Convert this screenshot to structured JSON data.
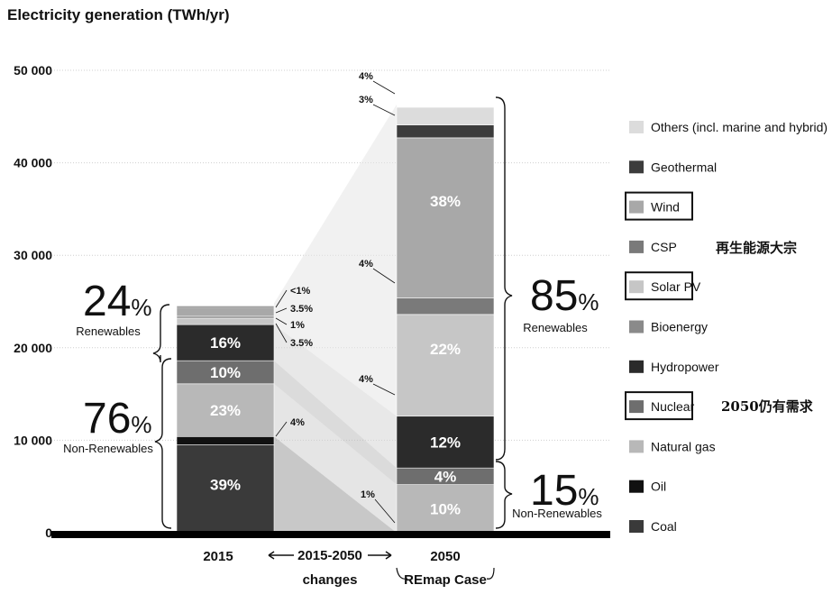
{
  "chart_data": {
    "type": "bar",
    "title": "Electricity generation (TWh/yr)",
    "ylim": [
      0,
      50000
    ],
    "yticks": [
      {
        "value": 0,
        "label": "0"
      },
      {
        "value": 10000,
        "label": "10 000"
      },
      {
        "value": 20000,
        "label": "20 000"
      },
      {
        "value": 30000,
        "label": "30 000"
      },
      {
        "value": 40000,
        "label": "40 000"
      },
      {
        "value": 50000,
        "label": "50 000"
      }
    ],
    "categories": [
      "2015",
      "2050"
    ],
    "x_labels": {
      "bar_2015": "2015",
      "changes_line1": "2015-2050",
      "changes_line2": "changes",
      "bar_2050_line1": "2050",
      "bar_2050_line2": "REmap Case"
    },
    "series": [
      {
        "name": "Coal",
        "color": "#3a3a3a",
        "values": [
          9500,
          0
        ]
      },
      {
        "name": "Oil",
        "color": "#111111",
        "values": [
          900,
          0
        ]
      },
      {
        "name": "Natural gas",
        "color": "#b8b8b8",
        "values": [
          5700,
          5200
        ]
      },
      {
        "name": "Nuclear",
        "color": "#6e6e6e",
        "values": [
          2500,
          1800
        ]
      },
      {
        "name": "Bioenergy",
        "color": "#8a8a8a",
        "values": [
          0,
          0
        ]
      },
      {
        "name": "Hydropower",
        "color": "#2b2b2b",
        "values": [
          3900,
          5600
        ]
      },
      {
        "name": "Solar PV",
        "color": "#c6c6c6",
        "values": [
          700,
          11000
        ]
      },
      {
        "name": "CSP",
        "color": "#7a7a7a",
        "values": [
          200,
          1800
        ]
      },
      {
        "name": "Wind",
        "color": "#a8a8a8",
        "values": [
          900,
          17300
        ]
      },
      {
        "name": "Geothermal",
        "color": "#3c3c3c",
        "values": [
          150,
          1400
        ]
      },
      {
        "name": "Others (incl. marine and hybrid)",
        "color": "#dcdcdc",
        "values": [
          150,
          1900
        ]
      }
    ],
    "segment_labels_2015": [
      "39%",
      "23%",
      "10%",
      "16%"
    ],
    "segment_labels_2050": [
      "10%",
      "4%",
      "12%",
      "22%",
      "38%"
    ],
    "callouts_2015": [
      "<1%",
      "3.5%",
      "1%",
      "3.5%"
    ],
    "callouts_2050": [
      "4%",
      "3%",
      "4%",
      "4%",
      "1%"
    ],
    "change_callout": "4%",
    "summary": {
      "renew_2015": {
        "value": "24",
        "sign": "%",
        "label": "Renewables"
      },
      "nonrenew_2015": {
        "value": "76",
        "sign": "%",
        "label": "Non-Renewables"
      },
      "renew_2050": {
        "value": "85",
        "sign": "%",
        "label": "Renewables"
      },
      "nonrenew_2050": {
        "value": "15",
        "sign": "%",
        "label": "Non-Renewables"
      }
    },
    "legend": [
      "Others (incl. marine and hybrid)",
      "Geothermal",
      "Wind",
      "CSP",
      "Solar PV",
      "Bioenergy",
      "Hydropower",
      "Nuclear",
      "Natural gas",
      "Oil",
      "Coal"
    ],
    "legend_colors": [
      "#dcdcdc",
      "#3c3c3c",
      "#a8a8a8",
      "#7a7a7a",
      "#c6c6c6",
      "#8a8a8a",
      "#2b2b2b",
      "#6e6e6e",
      "#b8b8b8",
      "#111111",
      "#3a3a3a"
    ],
    "highlighted_legend": [
      "Wind",
      "Solar PV",
      "Nuclear"
    ],
    "annotations": {
      "renewables_note": "再生能源大宗",
      "nuclear_note": "2050仍有需求"
    }
  }
}
